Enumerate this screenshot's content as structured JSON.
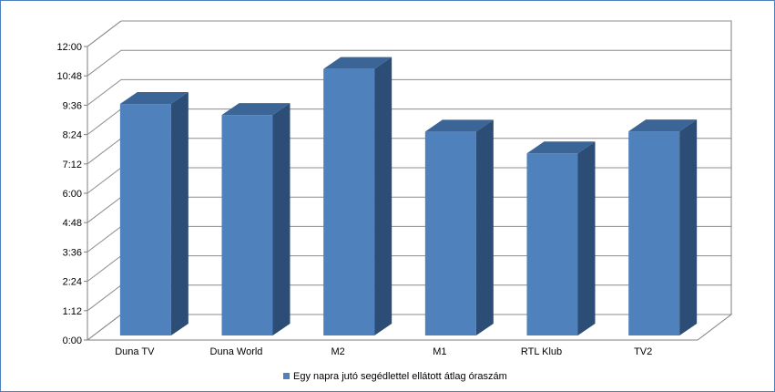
{
  "chart_data": {
    "type": "bar",
    "style": "3d-column",
    "categories": [
      "Duna TV",
      "Duna World",
      "M2",
      "M1",
      "RTL Klub",
      "TV2"
    ],
    "series": [
      {
        "name": "Egy napra jutó segédlettel ellátott átlag óraszám",
        "values_hours": [
          9.65,
          9.2,
          11.08,
          8.52,
          7.63,
          8.53
        ],
        "color": "#4f81bd"
      }
    ],
    "y_ticks": [
      "0:00",
      "1:12",
      "2:24",
      "3:36",
      "4:48",
      "6:00",
      "7:12",
      "8:24",
      "9:36",
      "10:48",
      "12:00"
    ],
    "ylim_hours": [
      0,
      12
    ],
    "grid": true,
    "legend_position": "bottom"
  }
}
